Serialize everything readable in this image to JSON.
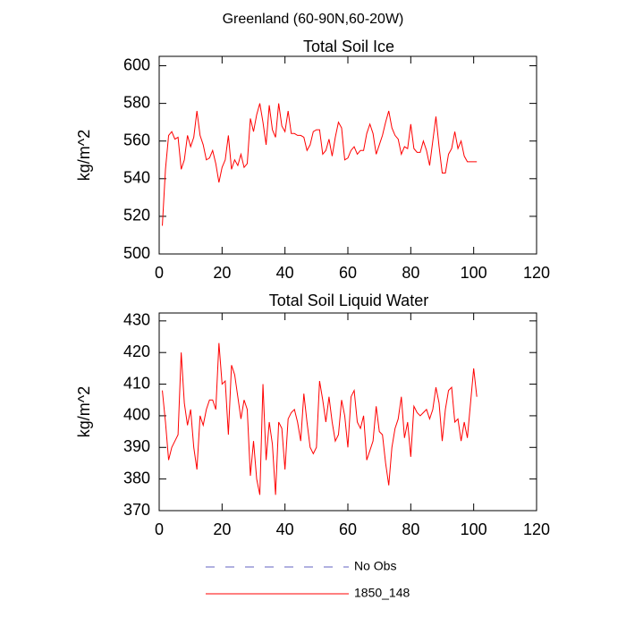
{
  "title": "Greenland (60-90N,60-20W)",
  "legend": [
    {
      "name": "No Obs",
      "color": "#6060c0",
      "dashed": true
    },
    {
      "name": "1850_148",
      "color": "#ff0000",
      "dashed": false
    }
  ],
  "chart_data": [
    {
      "type": "line",
      "title": "Total Soil Ice",
      "ylabel": "kg/m^2",
      "color": "#ff0000",
      "x": [
        1,
        2,
        3,
        4,
        5,
        6,
        7,
        8,
        9,
        10,
        11,
        12,
        13,
        14,
        15,
        16,
        17,
        18,
        19,
        20,
        21,
        22,
        23,
        24,
        25,
        26,
        27,
        28,
        29,
        30,
        31,
        32,
        33,
        34,
        35,
        36,
        37,
        38,
        39,
        40,
        41,
        42,
        43,
        44,
        45,
        46,
        47,
        48,
        49,
        50,
        51,
        52,
        53,
        54,
        55,
        56,
        57,
        58,
        59,
        60,
        61,
        62,
        63,
        64,
        65,
        66,
        67,
        68,
        69,
        70,
        71,
        72,
        73,
        74,
        75,
        76,
        77,
        78,
        79,
        80,
        81,
        82,
        83,
        84,
        85,
        86,
        87,
        88,
        89,
        90,
        91,
        92,
        93,
        94,
        95,
        96,
        97,
        98,
        99,
        100,
        101
      ],
      "values": [
        515,
        545,
        563,
        565,
        561,
        562,
        545,
        550,
        563,
        557,
        562,
        576,
        563,
        558,
        550,
        551,
        555,
        548,
        538,
        546,
        550,
        563,
        545,
        550,
        547,
        553,
        546,
        548,
        572,
        565,
        574,
        580,
        570,
        558,
        579,
        566,
        562,
        580,
        568,
        565,
        576,
        564,
        564,
        563,
        563,
        562,
        555,
        558,
        565,
        566,
        566,
        553,
        555,
        561,
        552,
        562,
        570,
        567,
        550,
        551,
        555,
        557,
        553,
        555,
        555,
        564,
        569,
        564,
        553,
        558,
        563,
        570,
        576,
        567,
        563,
        561,
        553,
        557,
        556,
        569,
        556,
        554,
        554,
        560,
        555,
        547,
        560,
        573,
        557,
        543,
        543,
        553,
        556,
        565,
        556,
        560,
        552,
        549,
        549,
        549,
        549
      ],
      "xlim": [
        0,
        120
      ],
      "xticks": [
        0,
        20,
        40,
        60,
        80,
        100,
        120
      ],
      "ylim": [
        500,
        605
      ],
      "yticks": [
        500,
        520,
        540,
        560,
        580,
        600
      ]
    },
    {
      "type": "line",
      "title": "Total Soil Liquid Water",
      "ylabel": "kg/m^2",
      "color": "#ff0000",
      "x": [
        1,
        2,
        3,
        4,
        5,
        6,
        7,
        8,
        9,
        10,
        11,
        12,
        13,
        14,
        15,
        16,
        17,
        18,
        19,
        20,
        21,
        22,
        23,
        24,
        25,
        26,
        27,
        28,
        29,
        30,
        31,
        32,
        33,
        34,
        35,
        36,
        37,
        38,
        39,
        40,
        41,
        42,
        43,
        44,
        45,
        46,
        47,
        48,
        49,
        50,
        51,
        52,
        53,
        54,
        55,
        56,
        57,
        58,
        59,
        60,
        61,
        62,
        63,
        64,
        65,
        66,
        67,
        68,
        69,
        70,
        71,
        72,
        73,
        74,
        75,
        76,
        77,
        78,
        79,
        80,
        81,
        82,
        83,
        84,
        85,
        86,
        87,
        88,
        89,
        90,
        91,
        92,
        93,
        94,
        95,
        96,
        97,
        98,
        99,
        100,
        101
      ],
      "values": [
        408,
        398,
        386,
        390,
        392,
        394,
        420,
        404,
        397,
        402,
        390,
        383,
        400,
        397,
        402,
        405,
        405,
        402,
        423,
        410,
        411,
        394,
        416,
        413,
        406,
        399,
        405,
        402,
        381,
        392,
        380,
        375,
        410,
        386,
        398,
        391,
        375,
        398,
        396,
        383,
        399,
        401,
        402,
        398,
        392,
        407,
        398,
        390,
        388,
        390,
        411,
        405,
        398,
        406,
        398,
        392,
        394,
        405,
        400,
        390,
        406,
        408,
        398,
        396,
        400,
        386,
        389,
        392,
        403,
        395,
        394,
        385,
        378,
        390,
        396,
        399,
        406,
        393,
        398,
        387,
        403,
        401,
        400,
        401,
        402,
        399,
        402,
        409,
        404,
        392,
        402,
        408,
        409,
        398,
        399,
        392,
        398,
        393,
        404,
        415,
        406
      ],
      "xlim": [
        0,
        120
      ],
      "xticks": [
        0,
        20,
        40,
        60,
        80,
        100,
        120
      ],
      "ylim": [
        370,
        432.5
      ],
      "yticks": [
        370,
        380,
        390,
        400,
        410,
        420,
        430
      ]
    }
  ]
}
